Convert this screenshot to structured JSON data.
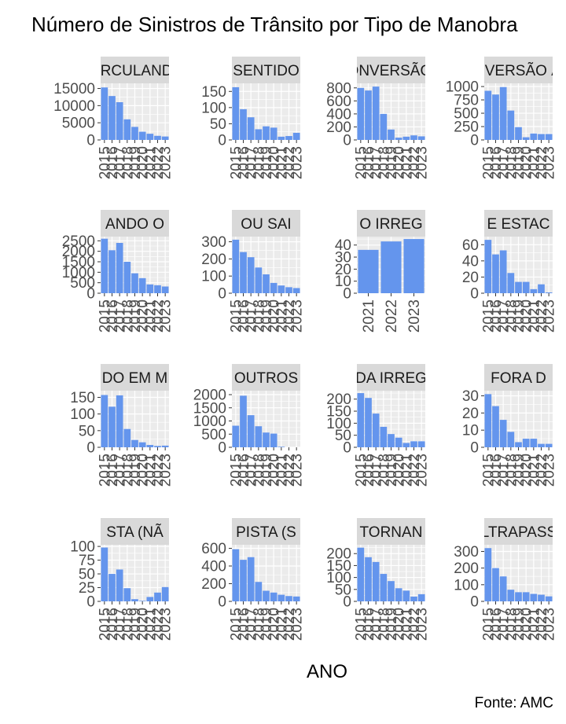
{
  "chart_data": {
    "type": "bar",
    "title": "Número de Sinistros de Trânsito por Tipo de Manobra",
    "xlabel": "ANO",
    "ylabel": "",
    "caption": "Fonte: AMC",
    "bar_color": "#6495ED",
    "panel_bg": "#EBEBEB",
    "strip_bg": "#D9D9D9",
    "grid": true,
    "layout": "facet 4x4, free scales",
    "panels": [
      {
        "strip": "CIRCULANDO",
        "x": [
          2015,
          2016,
          2017,
          2018,
          2019,
          2020,
          2021,
          2022,
          2023
        ],
        "values": [
          15300,
          12800,
          11000,
          6000,
          3800,
          2400,
          1800,
          1200,
          1000
        ],
        "yticks": [
          0,
          5000,
          10000,
          15000
        ],
        "ylim": [
          0,
          16500
        ],
        "xticks": [
          2015,
          2016,
          2017,
          2018,
          2019,
          2020,
          2021,
          2022,
          2023
        ],
        "xtick_labels": [
          "2015",
          "2016",
          "2017",
          "2018",
          "2019",
          "2020",
          "2021",
          "2022",
          "2023"
        ]
      },
      {
        "strip": "SENTIDO",
        "x": [
          2015,
          2016,
          2017,
          2018,
          2019,
          2020,
          2021,
          2022,
          2023
        ],
        "values": [
          163,
          95,
          70,
          33,
          42,
          38,
          10,
          12,
          22
        ],
        "yticks": [
          0,
          50,
          100,
          150
        ],
        "ylim": [
          0,
          175
        ],
        "xticks": [
          2015,
          2016,
          2017,
          2018,
          2019,
          2020,
          2021,
          2022,
          2023
        ],
        "xtick_labels": [
          "2015",
          "2016",
          "2017",
          "2018",
          "2019",
          "2020",
          "2021",
          "2022",
          "2023"
        ]
      },
      {
        "strip": "CONVERSÃO À",
        "x": [
          2015,
          2016,
          2017,
          2018,
          2019,
          2020,
          2021,
          2022,
          2023
        ],
        "values": [
          800,
          760,
          820,
          400,
          160,
          35,
          50,
          70,
          55
        ],
        "yticks": [
          0,
          200,
          400,
          600,
          800
        ],
        "ylim": [
          0,
          870
        ],
        "xticks": [
          2015,
          2016,
          2017,
          2018,
          2019,
          2020,
          2021,
          2022,
          2023
        ],
        "xtick_labels": [
          "2015",
          "2016",
          "2017",
          "2018",
          "2019",
          "2020",
          "2021",
          "2022",
          "2023"
        ]
      },
      {
        "strip": "CONVERSÃO À ES",
        "x": [
          2015,
          2016,
          2017,
          2018,
          2019,
          2020,
          2021,
          2022,
          2023
        ],
        "values": [
          920,
          850,
          990,
          550,
          240,
          50,
          120,
          110,
          110
        ],
        "yticks": [
          0,
          250,
          500,
          750,
          1000
        ],
        "ylim": [
          0,
          1060
        ],
        "xticks": [
          2015,
          2016,
          2017,
          2018,
          2019,
          2020,
          2021,
          2022,
          2023
        ],
        "xtick_labels": [
          "2015",
          "2016",
          "2017",
          "2018",
          "2019",
          "2020",
          "2021",
          "2022",
          "2023"
        ]
      },
      {
        "strip": "ANDO O",
        "x": [
          2015,
          2016,
          2017,
          2018,
          2019,
          2020,
          2021,
          2022,
          2023
        ],
        "values": [
          2600,
          2050,
          2400,
          1500,
          950,
          720,
          420,
          380,
          320
        ],
        "yticks": [
          0,
          500,
          1000,
          1500,
          2000,
          2500
        ],
        "ylim": [
          0,
          2700
        ],
        "xticks": [
          2015,
          2016,
          2017,
          2018,
          2019,
          2020,
          2021,
          2022,
          2023
        ],
        "xtick_labels": [
          "2015",
          "2016",
          "2017",
          "2018",
          "2019",
          "2020",
          "2021",
          "2022",
          "2023"
        ]
      },
      {
        "strip": "OU SAI",
        "x": [
          2015,
          2016,
          2017,
          2018,
          2019,
          2020,
          2021,
          2022,
          2023
        ],
        "values": [
          312,
          240,
          210,
          150,
          110,
          60,
          45,
          35,
          30
        ],
        "yticks": [
          0,
          100,
          200,
          300
        ],
        "ylim": [
          0,
          330
        ],
        "xticks": [
          2015,
          2016,
          2017,
          2018,
          2019,
          2020,
          2021,
          2022,
          2023
        ],
        "xtick_labels": [
          "2015",
          "2016",
          "2017",
          "2018",
          "2019",
          "2020",
          "2021",
          "2022",
          "2023"
        ]
      },
      {
        "strip": "O IRREG",
        "x": [
          2021,
          2022,
          2023
        ],
        "values": [
          36,
          43,
          45
        ],
        "yticks": [
          0,
          10,
          20,
          30,
          40
        ],
        "ylim": [
          0,
          47
        ],
        "xticks": [
          2021,
          2022,
          2023
        ],
        "xtick_labels": [
          "2021",
          "2022",
          "2023"
        ]
      },
      {
        "strip": "E ESTAC",
        "x": [
          2015,
          2016,
          2017,
          2018,
          2019,
          2020,
          2021,
          2022,
          2023
        ],
        "values": [
          66,
          48,
          53,
          25,
          14,
          14,
          5,
          11,
          1
        ],
        "yticks": [
          0,
          20,
          40,
          60
        ],
        "ylim": [
          0,
          70
        ],
        "xticks": [
          2015,
          2016,
          2017,
          2018,
          2019,
          2020,
          2021,
          2022,
          2023
        ],
        "xtick_labels": [
          "2015",
          "2016",
          "2017",
          "2018",
          "2019",
          "2020",
          "2021",
          "2022",
          "2023"
        ]
      },
      {
        "strip": "DO EM M",
        "x": [
          2015,
          2016,
          2017,
          2018,
          2019,
          2020,
          2021,
          2022,
          2023
        ],
        "values": [
          157,
          122,
          156,
          55,
          22,
          15,
          7,
          4,
          5
        ],
        "yticks": [
          0,
          50,
          100,
          150
        ],
        "ylim": [
          0,
          170
        ],
        "xticks": [
          2015,
          2016,
          2017,
          2018,
          2019,
          2020,
          2021,
          2022,
          2023
        ],
        "xtick_labels": [
          "2015",
          "2016",
          "2017",
          "2018",
          "2019",
          "2020",
          "2021",
          "2022",
          "2023"
        ]
      },
      {
        "strip": "OUTROS",
        "x": [
          2015,
          2016,
          2017,
          2018,
          2019,
          2020,
          2021,
          2022,
          2023
        ],
        "values": [
          820,
          1960,
          1220,
          800,
          560,
          520,
          20,
          0,
          0
        ],
        "yticks": [
          0,
          500,
          1000,
          1500,
          2000
        ],
        "ylim": [
          0,
          2150
        ],
        "xticks": [
          2015,
          2016,
          2017,
          2018,
          2019,
          2020,
          2021,
          2022,
          2023
        ],
        "xtick_labels": [
          "2015",
          "2016",
          "2017",
          "2018",
          "2019",
          "2020",
          "2021",
          "2022",
          "2023"
        ]
      },
      {
        "strip": "DA IRREG",
        "x": [
          2015,
          2016,
          2017,
          2018,
          2019,
          2020,
          2021,
          2022,
          2023
        ],
        "values": [
          225,
          205,
          140,
          85,
          55,
          40,
          18,
          25,
          25
        ],
        "yticks": [
          0,
          50,
          100,
          150,
          200
        ],
        "ylim": [
          0,
          235
        ],
        "xticks": [
          2015,
          2016,
          2017,
          2018,
          2019,
          2020,
          2021,
          2022,
          2023
        ],
        "xtick_labels": [
          "2015",
          "2016",
          "2017",
          "2018",
          "2019",
          "2020",
          "2021",
          "2022",
          "2023"
        ]
      },
      {
        "strip": "FORA D",
        "x": [
          2015,
          2016,
          2017,
          2018,
          2019,
          2020,
          2021,
          2022,
          2023
        ],
        "values": [
          31,
          24,
          16,
          9,
          3,
          5,
          5,
          2,
          2
        ],
        "yticks": [
          0,
          10,
          20,
          30
        ],
        "ylim": [
          0,
          33
        ],
        "xticks": [
          2015,
          2016,
          2017,
          2018,
          2019,
          2020,
          2021,
          2022,
          2023
        ],
        "xtick_labels": [
          "2015",
          "2016",
          "2017",
          "2018",
          "2019",
          "2020",
          "2021",
          "2022",
          "2023"
        ]
      },
      {
        "strip": "STA (NÃ",
        "x": [
          2015,
          2016,
          2017,
          2018,
          2019,
          2020,
          2021,
          2022,
          2023
        ],
        "values": [
          98,
          50,
          58,
          24,
          4,
          1,
          8,
          16,
          26
        ],
        "yticks": [
          0,
          25,
          50,
          75,
          100
        ],
        "ylim": [
          0,
          103
        ],
        "xticks": [
          2015,
          2016,
          2017,
          2018,
          2019,
          2020,
          2021,
          2022,
          2023
        ],
        "xtick_labels": [
          "2015",
          "2016",
          "2017",
          "2018",
          "2019",
          "2020",
          "2021",
          "2022",
          "2023"
        ]
      },
      {
        "strip": "PISTA (S",
        "x": [
          2015,
          2016,
          2017,
          2018,
          2019,
          2020,
          2021,
          2022,
          2023
        ],
        "values": [
          590,
          470,
          500,
          220,
          120,
          100,
          75,
          60,
          55
        ],
        "yticks": [
          0,
          200,
          400,
          600
        ],
        "ylim": [
          0,
          640
        ],
        "xticks": [
          2015,
          2016,
          2017,
          2018,
          2019,
          2020,
          2021,
          2022,
          2023
        ],
        "xtick_labels": [
          "2015",
          "2016",
          "2017",
          "2018",
          "2019",
          "2020",
          "2021",
          "2022",
          "2023"
        ]
      },
      {
        "strip": "TORNAN",
        "x": [
          2015,
          2016,
          2017,
          2018,
          2019,
          2020,
          2021,
          2022,
          2023
        ],
        "values": [
          225,
          185,
          165,
          115,
          85,
          55,
          45,
          20,
          30
        ],
        "yticks": [
          0,
          50,
          100,
          150,
          200
        ],
        "ylim": [
          0,
          237
        ],
        "xticks": [
          2015,
          2016,
          2017,
          2018,
          2019,
          2020,
          2021,
          2022,
          2023
        ],
        "xtick_labels": [
          "2015",
          "2016",
          "2017",
          "2018",
          "2019",
          "2020",
          "2021",
          "2022",
          "2023"
        ]
      },
      {
        "strip": "ULTRAPASSA",
        "x": [
          2015,
          2016,
          2017,
          2018,
          2019,
          2020,
          2021,
          2022,
          2023
        ],
        "values": [
          320,
          200,
          150,
          70,
          55,
          55,
          45,
          40,
          30
        ],
        "yticks": [
          0,
          100,
          200,
          300
        ],
        "ylim": [
          0,
          340
        ],
        "xticks": [
          2015,
          2016,
          2017,
          2018,
          2019,
          2020,
          2021,
          2022,
          2023
        ],
        "xtick_labels": [
          "2015",
          "2016",
          "2017",
          "2018",
          "2019",
          "2020",
          "2021",
          "2022",
          "2023"
        ]
      }
    ]
  }
}
